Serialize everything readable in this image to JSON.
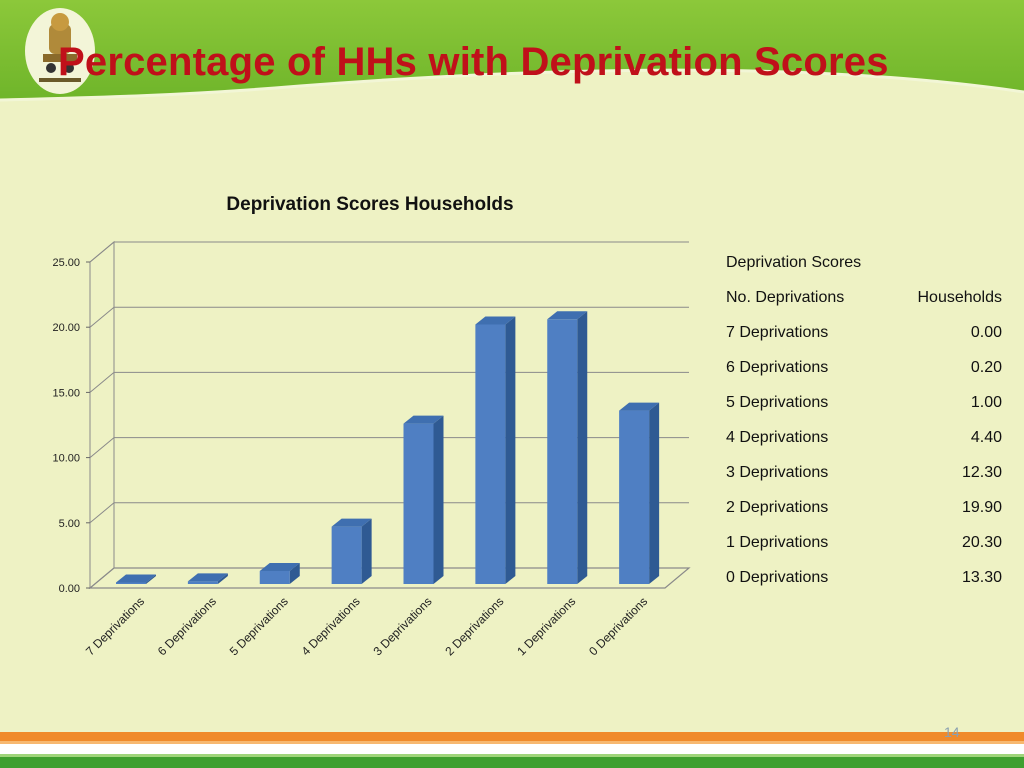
{
  "slide": {
    "title": "Percentage of HHs with Deprivation Scores",
    "page_number": "14",
    "colors": {
      "title": "#c0101a",
      "header_green": "#7fc12b",
      "bar": "#4f7fc3",
      "background": "#eef2c4"
    }
  },
  "chart_data": {
    "type": "bar",
    "title": "Deprivation Scores  Households",
    "categories": [
      "7 Deprivations",
      "6 Deprivations",
      "5 Deprivations",
      "4 Deprivations",
      "3 Deprivations",
      "2 Deprivations",
      "1 Deprivations",
      "0 Deprivations"
    ],
    "values": [
      0.0,
      0.2,
      1.0,
      4.4,
      12.3,
      19.9,
      20.3,
      13.3
    ],
    "ylim": [
      0,
      25
    ],
    "yticks": [
      "0.00",
      "5.00",
      "10.00",
      "15.00",
      "20.00",
      "25.00"
    ],
    "grid": true,
    "style": "3d-column"
  },
  "table": {
    "title": "Deprivation Scores",
    "header": [
      "No. Deprivations",
      "Households"
    ],
    "rows": [
      [
        "7 Deprivations",
        "0.00"
      ],
      [
        "6 Deprivations",
        "0.20"
      ],
      [
        "5 Deprivations",
        "1.00"
      ],
      [
        "4 Deprivations",
        "4.40"
      ],
      [
        "3 Deprivations",
        "12.30"
      ],
      [
        "2 Deprivations",
        "19.90"
      ],
      [
        "1 Deprivations",
        "20.30"
      ],
      [
        "0 Deprivations",
        "13.30"
      ]
    ]
  }
}
